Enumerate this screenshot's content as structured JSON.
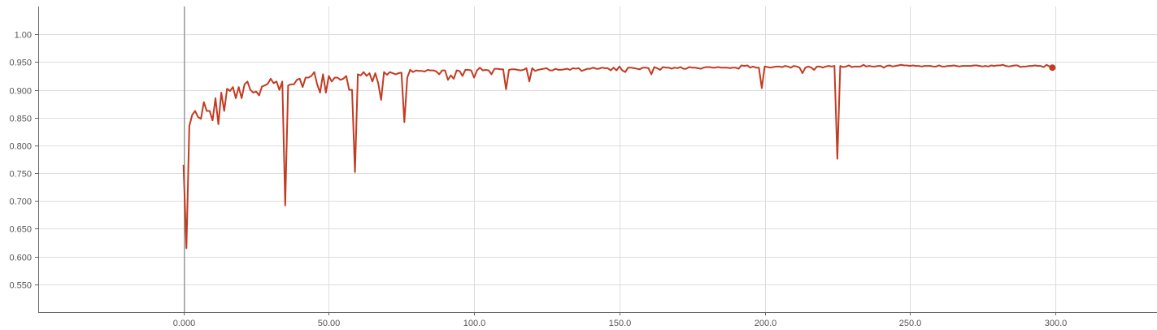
{
  "chart_data": {
    "type": "line",
    "title": "",
    "xlabel": "",
    "ylabel": "",
    "xlim": [
      -50,
      335
    ],
    "ylim": [
      0.5,
      1.05
    ],
    "grid": true,
    "legend": "none",
    "x_ticks": [
      0,
      50,
      100,
      150,
      200,
      250,
      300
    ],
    "x_tick_labels": [
      "0.000",
      "50.00",
      "100.0",
      "150.0",
      "200.0",
      "250.0",
      "300.0"
    ],
    "y_ticks": [
      0.55,
      0.6,
      0.65,
      0.7,
      0.75,
      0.8,
      0.85,
      0.9,
      0.95,
      1.0
    ],
    "y_tick_labels": [
      "0.550",
      "0.600",
      "0.650",
      "0.700",
      "0.750",
      "0.800",
      "0.850",
      "0.900",
      "0.950",
      "1.00"
    ],
    "series": [
      {
        "color": "#c23b22",
        "end_marker": true,
        "points": [
          [
            0,
            0.765
          ],
          [
            1,
            0.615
          ],
          [
            2,
            0.835
          ],
          [
            3,
            0.855
          ],
          [
            4,
            0.862
          ],
          [
            5,
            0.851
          ],
          [
            6,
            0.848
          ],
          [
            7,
            0.878
          ],
          [
            8,
            0.862
          ],
          [
            9,
            0.862
          ],
          [
            10,
            0.845
          ],
          [
            11,
            0.885
          ],
          [
            12,
            0.838
          ],
          [
            13,
            0.895
          ],
          [
            14,
            0.862
          ],
          [
            15,
            0.902
          ],
          [
            16,
            0.898
          ],
          [
            17,
            0.905
          ],
          [
            18,
            0.885
          ],
          [
            19,
            0.905
          ],
          [
            20,
            0.885
          ],
          [
            21,
            0.91
          ],
          [
            22,
            0.915
          ],
          [
            23,
            0.9
          ],
          [
            24,
            0.895
          ],
          [
            25,
            0.897
          ],
          [
            26,
            0.89
          ],
          [
            27,
            0.906
          ],
          [
            28,
            0.908
          ],
          [
            29,
            0.911
          ],
          [
            30,
            0.92
          ],
          [
            31,
            0.912
          ],
          [
            32,
            0.915
          ],
          [
            33,
            0.9
          ],
          [
            34,
            0.915
          ],
          [
            35,
            0.692
          ],
          [
            36,
            0.908
          ],
          [
            37,
            0.91
          ],
          [
            38,
            0.91
          ],
          [
            39,
            0.918
          ],
          [
            40,
            0.92
          ],
          [
            41,
            0.905
          ],
          [
            42,
            0.922
          ],
          [
            43,
            0.922
          ],
          [
            44,
            0.925
          ],
          [
            45,
            0.932
          ],
          [
            46,
            0.91
          ],
          [
            47,
            0.895
          ],
          [
            48,
            0.928
          ],
          [
            49,
            0.895
          ],
          [
            50,
            0.925
          ],
          [
            51,
            0.915
          ],
          [
            52,
            0.922
          ],
          [
            53,
            0.922
          ],
          [
            54,
            0.918
          ],
          [
            55,
            0.92
          ],
          [
            56,
            0.925
          ],
          [
            57,
            0.9
          ],
          [
            58,
            0.9
          ],
          [
            59,
            0.752
          ],
          [
            60,
            0.928
          ],
          [
            61,
            0.926
          ],
          [
            62,
            0.932
          ],
          [
            63,
            0.925
          ],
          [
            64,
            0.93
          ],
          [
            65,
            0.915
          ],
          [
            66,
            0.93
          ],
          [
            67,
            0.912
          ],
          [
            68,
            0.882
          ],
          [
            69,
            0.932
          ],
          [
            70,
            0.927
          ],
          [
            71,
            0.932
          ],
          [
            72,
            0.93
          ],
          [
            73,
            0.928
          ],
          [
            74,
            0.93
          ],
          [
            75,
            0.931
          ],
          [
            76,
            0.842
          ],
          [
            77,
            0.922
          ],
          [
            78,
            0.936
          ],
          [
            79,
            0.932
          ],
          [
            80,
            0.935
          ],
          [
            81,
            0.934
          ],
          [
            82,
            0.934
          ],
          [
            83,
            0.933
          ],
          [
            84,
            0.936
          ],
          [
            85,
            0.935
          ],
          [
            86,
            0.935
          ],
          [
            87,
            0.933
          ],
          [
            88,
            0.928
          ],
          [
            89,
            0.935
          ],
          [
            90,
            0.935
          ],
          [
            91,
            0.918
          ],
          [
            92,
            0.926
          ],
          [
            93,
            0.92
          ],
          [
            94,
            0.935
          ],
          [
            95,
            0.934
          ],
          [
            96,
            0.925
          ],
          [
            97,
            0.936
          ],
          [
            98,
            0.936
          ],
          [
            99,
            0.935
          ],
          [
            100,
            0.922
          ],
          [
            101,
            0.935
          ],
          [
            102,
            0.94
          ],
          [
            103,
            0.935
          ],
          [
            104,
            0.936
          ],
          [
            105,
            0.935
          ],
          [
            106,
            0.928
          ],
          [
            107,
            0.938
          ],
          [
            108,
            0.938
          ],
          [
            109,
            0.937
          ],
          [
            110,
            0.937
          ],
          [
            111,
            0.901
          ],
          [
            112,
            0.936
          ],
          [
            113,
            0.937
          ],
          [
            114,
            0.937
          ],
          [
            115,
            0.936
          ],
          [
            116,
            0.935
          ],
          [
            117,
            0.936
          ],
          [
            118,
            0.939
          ],
          [
            119,
            0.915
          ],
          [
            120,
            0.939
          ],
          [
            121,
            0.934
          ],
          [
            122,
            0.936
          ],
          [
            123,
            0.937
          ],
          [
            124,
            0.938
          ],
          [
            125,
            0.939
          ],
          [
            126,
            0.935
          ],
          [
            127,
            0.935
          ],
          [
            128,
            0.938
          ],
          [
            129,
            0.936
          ],
          [
            130,
            0.936
          ],
          [
            131,
            0.937
          ],
          [
            132,
            0.938
          ],
          [
            133,
            0.936
          ],
          [
            134,
            0.939
          ],
          [
            135,
            0.938
          ],
          [
            136,
            0.939
          ],
          [
            137,
            0.934
          ],
          [
            138,
            0.936
          ],
          [
            139,
            0.938
          ],
          [
            140,
            0.938
          ],
          [
            141,
            0.94
          ],
          [
            142,
            0.938
          ],
          [
            143,
            0.938
          ],
          [
            144,
            0.94
          ],
          [
            145,
            0.939
          ],
          [
            146,
            0.939
          ],
          [
            147,
            0.935
          ],
          [
            148,
            0.94
          ],
          [
            149,
            0.935
          ],
          [
            150,
            0.942
          ],
          [
            151,
            0.935
          ],
          [
            152,
            0.932
          ],
          [
            153,
            0.94
          ],
          [
            154,
            0.94
          ],
          [
            155,
            0.939
          ],
          [
            156,
            0.938
          ],
          [
            157,
            0.937
          ],
          [
            158,
            0.94
          ],
          [
            159,
            0.94
          ],
          [
            160,
            0.939
          ],
          [
            161,
            0.928
          ],
          [
            162,
            0.941
          ],
          [
            163,
            0.939
          ],
          [
            164,
            0.936
          ],
          [
            165,
            0.941
          ],
          [
            166,
            0.94
          ],
          [
            167,
            0.94
          ],
          [
            168,
            0.938
          ],
          [
            169,
            0.94
          ],
          [
            170,
            0.939
          ],
          [
            171,
            0.941
          ],
          [
            172,
            0.938
          ],
          [
            173,
            0.938
          ],
          [
            174,
            0.941
          ],
          [
            175,
            0.94
          ],
          [
            176,
            0.94
          ],
          [
            177,
            0.939
          ],
          [
            178,
            0.938
          ],
          [
            179,
            0.94
          ],
          [
            180,
            0.941
          ],
          [
            181,
            0.941
          ],
          [
            182,
            0.94
          ],
          [
            183,
            0.94
          ],
          [
            184,
            0.941
          ],
          [
            185,
            0.94
          ],
          [
            186,
            0.94
          ],
          [
            187,
            0.94
          ],
          [
            188,
            0.939
          ],
          [
            189,
            0.94
          ],
          [
            190,
            0.94
          ],
          [
            191,
            0.938
          ],
          [
            192,
            0.944
          ],
          [
            193,
            0.943
          ],
          [
            194,
            0.944
          ],
          [
            195,
            0.94
          ],
          [
            196,
            0.942
          ],
          [
            197,
            0.94
          ],
          [
            198,
            0.94
          ],
          [
            199,
            0.903
          ],
          [
            200,
            0.942
          ],
          [
            201,
            0.941
          ],
          [
            202,
            0.94
          ],
          [
            203,
            0.941
          ],
          [
            204,
            0.942
          ],
          [
            205,
            0.942
          ],
          [
            206,
            0.941
          ],
          [
            207,
            0.943
          ],
          [
            208,
            0.942
          ],
          [
            209,
            0.94
          ],
          [
            210,
            0.943
          ],
          [
            211,
            0.942
          ],
          [
            212,
            0.94
          ],
          [
            213,
            0.93
          ],
          [
            214,
            0.94
          ],
          [
            215,
            0.942
          ],
          [
            216,
            0.94
          ],
          [
            217,
            0.936
          ],
          [
            218,
            0.942
          ],
          [
            219,
            0.942
          ],
          [
            220,
            0.94
          ],
          [
            221,
            0.942
          ],
          [
            222,
            0.943
          ],
          [
            223,
            0.942
          ],
          [
            224,
            0.943
          ],
          [
            225,
            0.776
          ],
          [
            226,
            0.943
          ],
          [
            227,
            0.941
          ],
          [
            228,
            0.942
          ],
          [
            229,
            0.944
          ],
          [
            230,
            0.941
          ],
          [
            231,
            0.942
          ],
          [
            232,
            0.942
          ],
          [
            233,
            0.942
          ],
          [
            234,
            0.945
          ],
          [
            235,
            0.942
          ],
          [
            236,
            0.943
          ],
          [
            237,
            0.942
          ],
          [
            238,
            0.942
          ],
          [
            239,
            0.943
          ],
          [
            240,
            0.943
          ],
          [
            241,
            0.94
          ],
          [
            242,
            0.943
          ],
          [
            243,
            0.944
          ],
          [
            244,
            0.942
          ],
          [
            245,
            0.943
          ],
          [
            246,
            0.944
          ],
          [
            247,
            0.945
          ],
          [
            248,
            0.944
          ],
          [
            249,
            0.944
          ],
          [
            250,
            0.943
          ],
          [
            251,
            0.944
          ],
          [
            252,
            0.943
          ],
          [
            253,
            0.943
          ],
          [
            254,
            0.942
          ],
          [
            255,
            0.943
          ],
          [
            256,
            0.943
          ],
          [
            257,
            0.943
          ],
          [
            258,
            0.942
          ],
          [
            259,
            0.942
          ],
          [
            260,
            0.944
          ],
          [
            261,
            0.942
          ],
          [
            262,
            0.942
          ],
          [
            263,
            0.943
          ],
          [
            264,
            0.943
          ],
          [
            265,
            0.944
          ],
          [
            266,
            0.943
          ],
          [
            267,
            0.942
          ],
          [
            268,
            0.943
          ],
          [
            269,
            0.943
          ],
          [
            270,
            0.943
          ],
          [
            271,
            0.943
          ],
          [
            272,
            0.944
          ],
          [
            273,
            0.944
          ],
          [
            274,
            0.943
          ],
          [
            275,
            0.942
          ],
          [
            276,
            0.943
          ],
          [
            277,
            0.942
          ],
          [
            278,
            0.944
          ],
          [
            279,
            0.943
          ],
          [
            280,
            0.944
          ],
          [
            281,
            0.944
          ],
          [
            282,
            0.945
          ],
          [
            283,
            0.943
          ],
          [
            284,
            0.942
          ],
          [
            285,
            0.943
          ],
          [
            286,
            0.944
          ],
          [
            287,
            0.944
          ],
          [
            288,
            0.941
          ],
          [
            289,
            0.942
          ],
          [
            290,
            0.942
          ],
          [
            291,
            0.943
          ],
          [
            292,
            0.943
          ],
          [
            293,
            0.944
          ],
          [
            294,
            0.943
          ],
          [
            295,
            0.943
          ],
          [
            296,
            0.941
          ],
          [
            297,
            0.945
          ],
          [
            298,
            0.942
          ],
          [
            299,
            0.94
          ]
        ]
      }
    ]
  }
}
